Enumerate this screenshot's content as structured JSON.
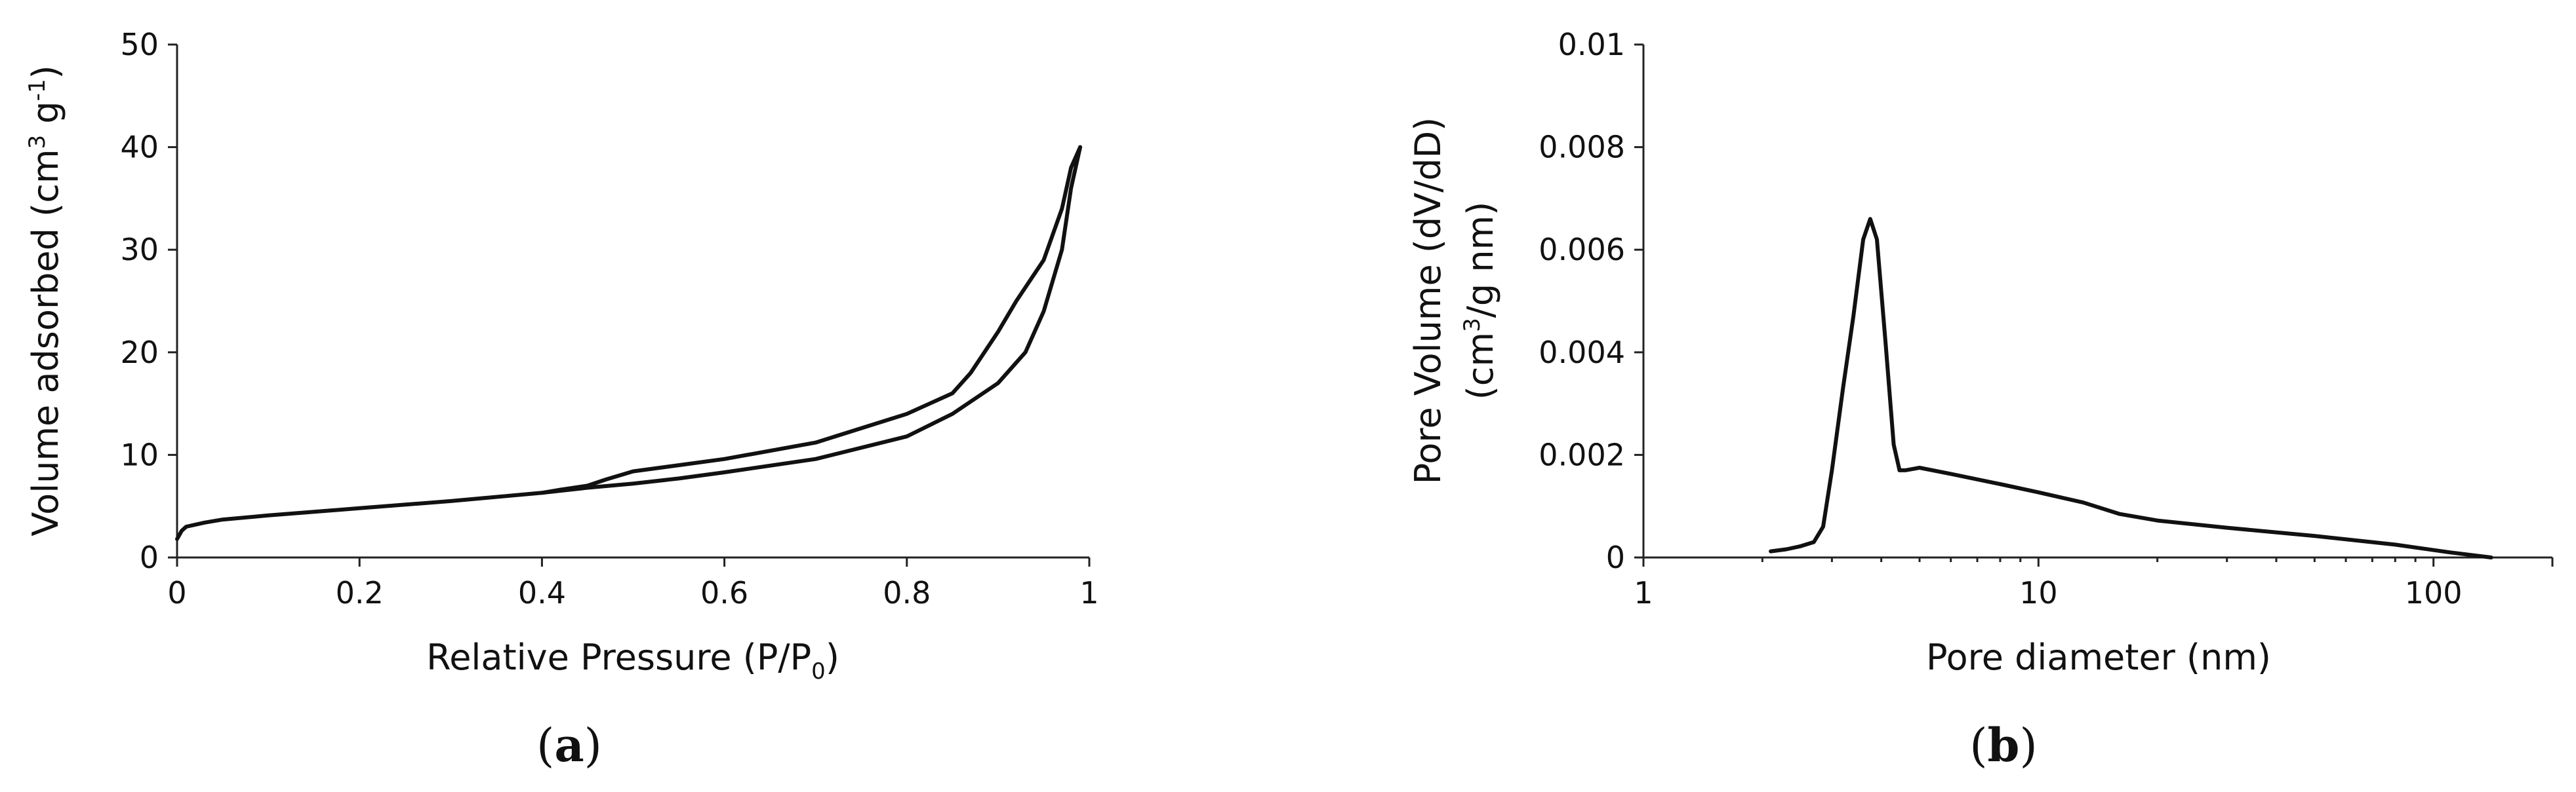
{
  "chart_data": [
    {
      "type": "line",
      "panel_label": "a",
      "xlabel_parts": [
        "Relative Pressure (P/P",
        "0",
        ")"
      ],
      "ylabel_parts": [
        "Volume adsorbed (cm",
        "3",
        " g",
        "-1",
        ")"
      ],
      "xlim": [
        0,
        1
      ],
      "ylim": [
        0,
        50
      ],
      "x_ticks": [
        0,
        0.2,
        0.4,
        0.6,
        0.8,
        1
      ],
      "x_tick_labels": [
        "0",
        "0.2",
        "0.4",
        "0.6",
        "0.8",
        "1"
      ],
      "y_ticks": [
        0,
        10,
        20,
        30,
        40,
        50
      ],
      "y_tick_labels": [
        "0",
        "10",
        "20",
        "30",
        "40",
        "50"
      ],
      "grid": false,
      "series": [
        {
          "role": "adsorption",
          "x": [
            0.0,
            0.005,
            0.01,
            0.03,
            0.05,
            0.1,
            0.2,
            0.3,
            0.4,
            0.45,
            0.5,
            0.55,
            0.6,
            0.7,
            0.8,
            0.85,
            0.9,
            0.93,
            0.95,
            0.97,
            0.98,
            0.99
          ],
          "y": [
            1.8,
            2.6,
            3.0,
            3.4,
            3.7,
            4.1,
            4.8,
            5.5,
            6.3,
            6.8,
            7.2,
            7.7,
            8.3,
            9.6,
            11.8,
            14.0,
            17.0,
            20.0,
            24.0,
            30.0,
            36.0,
            40.0
          ]
        },
        {
          "role": "desorption",
          "x": [
            0.99,
            0.98,
            0.97,
            0.95,
            0.92,
            0.9,
            0.87,
            0.85,
            0.8,
            0.7,
            0.6,
            0.55,
            0.5,
            0.47,
            0.45,
            0.42,
            0.4
          ],
          "y": [
            40.0,
            38.0,
            34.0,
            29.0,
            25.0,
            22.0,
            18.0,
            16.0,
            14.0,
            11.2,
            9.6,
            9.0,
            8.4,
            7.6,
            7.0,
            6.6,
            6.3
          ]
        }
      ]
    },
    {
      "type": "line",
      "panel_label": "b",
      "xlabel": "Pore diameter (nm)",
      "ylabel_line1": "Pore Volume (dV/dD)",
      "ylabel_line2_parts": [
        "(cm",
        "3",
        "/g nm)"
      ],
      "x_scale": "log",
      "xlim": [
        1,
        200
      ],
      "ylim": [
        0,
        0.01
      ],
      "x_ticks": [
        1,
        10,
        100
      ],
      "x_tick_labels": [
        "1",
        "10",
        "100"
      ],
      "y_ticks": [
        0,
        0.002,
        0.004,
        0.006,
        0.008,
        0.01
      ],
      "y_tick_labels": [
        "0",
        "0.002",
        "0.004",
        "0.006",
        "0.008",
        "0.01"
      ],
      "grid": false,
      "series": [
        {
          "x": [
            2.1,
            2.3,
            2.5,
            2.7,
            2.85,
            3.0,
            3.2,
            3.4,
            3.6,
            3.75,
            3.9,
            4.1,
            4.3,
            4.45,
            4.6,
            5.0,
            6.0,
            8.0,
            10.0,
            13.0,
            16.0,
            20.0,
            30.0,
            50.0,
            80.0,
            110.0,
            140.0
          ],
          "y": [
            0.00012,
            0.00016,
            0.00022,
            0.0003,
            0.0006,
            0.0017,
            0.0033,
            0.0047,
            0.0062,
            0.0066,
            0.0062,
            0.0042,
            0.0022,
            0.0017,
            0.0017,
            0.00175,
            0.00163,
            0.00143,
            0.00127,
            0.00107,
            0.00085,
            0.00072,
            0.00058,
            0.00042,
            0.00025,
            0.0001,
            0.0
          ]
        }
      ]
    }
  ]
}
